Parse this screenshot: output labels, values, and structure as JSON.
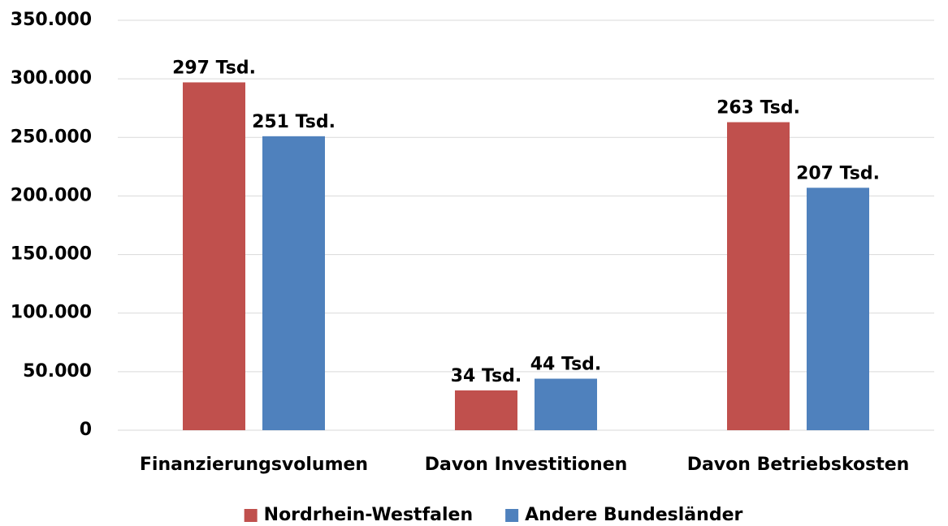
{
  "chart_data": {
    "type": "bar",
    "categories": [
      "Finanzierungsvolumen",
      "Davon Investitionen",
      "Davon Betriebskosten"
    ],
    "series": [
      {
        "name": "Nordrhein-Westfalen",
        "color": "#c0504d",
        "values": [
          297000,
          34000,
          263000
        ],
        "value_labels": [
          "297 Tsd.",
          "34 Tsd.",
          "263 Tsd."
        ]
      },
      {
        "name": "Andere Bundesländer",
        "color": "#4f81bd",
        "values": [
          251000,
          44000,
          207000
        ],
        "value_labels": [
          "251 Tsd.",
          "44 Tsd.",
          "207 Tsd."
        ]
      }
    ],
    "ylim": [
      0,
      350000
    ],
    "yticks": [
      0,
      {
        "value": 50000,
        "label": "50.000"
      },
      {
        "value": 100000,
        "label": "100.000"
      },
      {
        "value": 150000,
        "label": "150.000"
      },
      {
        "value": 200000,
        "label": "200.000"
      },
      {
        "value": 250000,
        "label": "250.000"
      },
      {
        "value": 300000,
        "label": "300.000"
      },
      {
        "value": 350000,
        "label": "350.000"
      }
    ],
    "grid": true,
    "legend": "bottom"
  }
}
